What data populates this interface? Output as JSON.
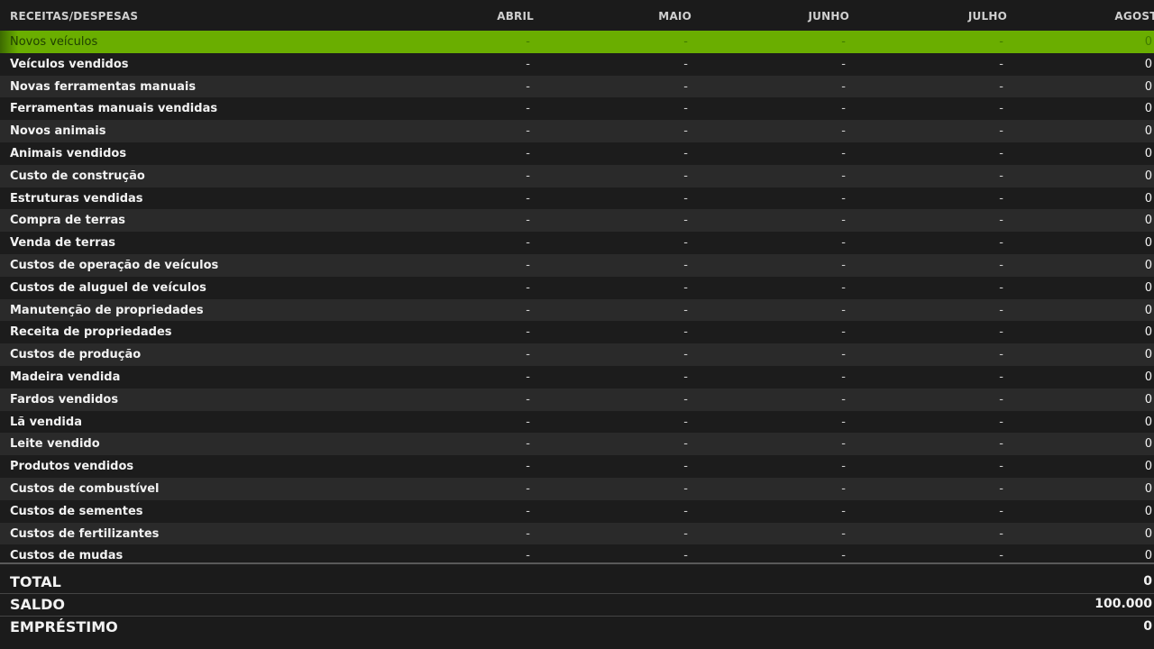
{
  "header": {
    "label": "RECEITAS/DESPESAS",
    "months": [
      "ABRIL",
      "MAIO",
      "JUNHO",
      "JULHO",
      "AGOSTO"
    ]
  },
  "rows": [
    {
      "label": "Novos veículos",
      "values": [
        "-",
        "-",
        "-",
        "-",
        "0"
      ],
      "selected": true
    },
    {
      "label": "Veículos vendidos",
      "values": [
        "-",
        "-",
        "-",
        "-",
        "0"
      ]
    },
    {
      "label": "Novas ferramentas manuais",
      "values": [
        "-",
        "-",
        "-",
        "-",
        "0"
      ]
    },
    {
      "label": "Ferramentas manuais vendidas",
      "values": [
        "-",
        "-",
        "-",
        "-",
        "0"
      ]
    },
    {
      "label": "Novos animais",
      "values": [
        "-",
        "-",
        "-",
        "-",
        "0"
      ]
    },
    {
      "label": "Animais vendidos",
      "values": [
        "-",
        "-",
        "-",
        "-",
        "0"
      ]
    },
    {
      "label": "Custo de construção",
      "values": [
        "-",
        "-",
        "-",
        "-",
        "0"
      ]
    },
    {
      "label": "Estruturas vendidas",
      "values": [
        "-",
        "-",
        "-",
        "-",
        "0"
      ]
    },
    {
      "label": "Compra de terras",
      "values": [
        "-",
        "-",
        "-",
        "-",
        "0"
      ]
    },
    {
      "label": "Venda de terras",
      "values": [
        "-",
        "-",
        "-",
        "-",
        "0"
      ]
    },
    {
      "label": "Custos de operação de veículos",
      "values": [
        "-",
        "-",
        "-",
        "-",
        "0"
      ]
    },
    {
      "label": "Custos de aluguel de veículos",
      "values": [
        "-",
        "-",
        "-",
        "-",
        "0"
      ]
    },
    {
      "label": "Manutenção de propriedades",
      "values": [
        "-",
        "-",
        "-",
        "-",
        "0"
      ]
    },
    {
      "label": "Receita de propriedades",
      "values": [
        "-",
        "-",
        "-",
        "-",
        "0"
      ]
    },
    {
      "label": "Custos de produção",
      "values": [
        "-",
        "-",
        "-",
        "-",
        "0"
      ]
    },
    {
      "label": "Madeira vendida",
      "values": [
        "-",
        "-",
        "-",
        "-",
        "0"
      ]
    },
    {
      "label": "Fardos vendidos",
      "values": [
        "-",
        "-",
        "-",
        "-",
        "0"
      ]
    },
    {
      "label": "Lã vendida",
      "values": [
        "-",
        "-",
        "-",
        "-",
        "0"
      ]
    },
    {
      "label": "Leite vendido",
      "values": [
        "-",
        "-",
        "-",
        "-",
        "0"
      ]
    },
    {
      "label": "Produtos vendidos",
      "values": [
        "-",
        "-",
        "-",
        "-",
        "0"
      ]
    },
    {
      "label": "Custos de combustível",
      "values": [
        "-",
        "-",
        "-",
        "-",
        "0"
      ]
    },
    {
      "label": "Custos de sementes",
      "values": [
        "-",
        "-",
        "-",
        "-",
        "0"
      ]
    },
    {
      "label": "Custos de fertilizantes",
      "values": [
        "-",
        "-",
        "-",
        "-",
        "0"
      ]
    },
    {
      "label": "Custos de mudas",
      "values": [
        "-",
        "-",
        "-",
        "-",
        "0"
      ]
    }
  ],
  "footer": {
    "total": {
      "label": "TOTAL",
      "value": "0"
    },
    "saldo": {
      "label": "SALDO",
      "value": "100.000"
    },
    "emprestimo": {
      "label": "EMPRÉSTIMO",
      "value": "0"
    }
  },
  "colors": {
    "selected": "#6aae00",
    "row_dark": "#1c1c1c",
    "row_light": "#2a2a2a"
  }
}
